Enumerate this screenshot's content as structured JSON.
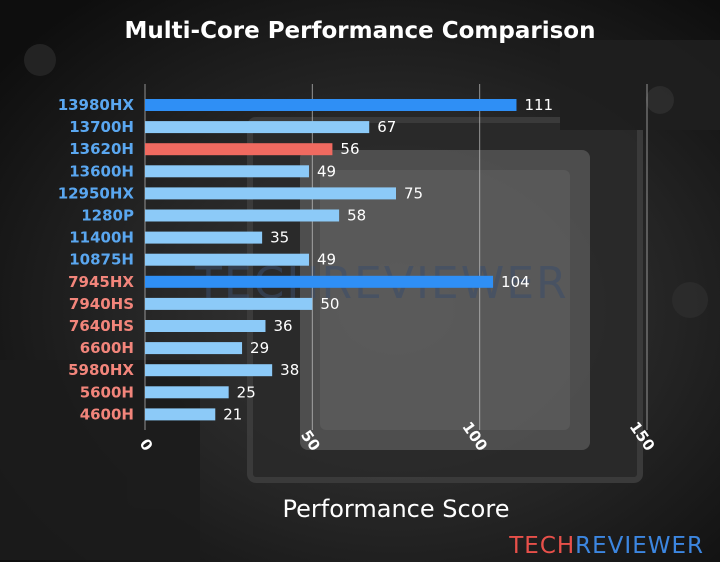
{
  "chart_data": {
    "type": "bar",
    "orientation": "horizontal",
    "title": "Multi-Core Performance Comparison",
    "xlabel": "Performance Score",
    "ylabel": "",
    "xlim": [
      0,
      150
    ],
    "xticks": [
      0,
      50,
      100,
      150
    ],
    "grid": true,
    "categories": [
      "13980HX",
      "13700H",
      "13620H",
      "13600H",
      "12950HX",
      "1280P",
      "11400H",
      "10875H",
      "7945HX",
      "7940HS",
      "7640HS",
      "6600H",
      "5980HX",
      "5600H",
      "4600H"
    ],
    "values": [
      111,
      67,
      56,
      49,
      75,
      58,
      35,
      49,
      104,
      50,
      36,
      29,
      38,
      25,
      21
    ],
    "bar_colors": [
      "#2f8ff5",
      "#8ccaf8",
      "#f06a60",
      "#8ccaf8",
      "#8ccaf8",
      "#8ccaf8",
      "#8ccaf8",
      "#8ccaf8",
      "#2f8ff5",
      "#8ccaf8",
      "#8ccaf8",
      "#8ccaf8",
      "#8ccaf8",
      "#8ccaf8",
      "#8ccaf8"
    ],
    "label_colors": [
      "#5aa7f0",
      "#5aa7f0",
      "#5aa7f0",
      "#5aa7f0",
      "#5aa7f0",
      "#5aa7f0",
      "#5aa7f0",
      "#5aa7f0",
      "#f2857b",
      "#f2857b",
      "#f2857b",
      "#f2857b",
      "#f2857b",
      "#f2857b",
      "#f2857b"
    ]
  },
  "watermark": "TECHREVIEWER",
  "logo": {
    "part1": "TECH",
    "part2": "REVIEWER",
    "color1": "#e8504a",
    "color2": "#3c86e0"
  }
}
